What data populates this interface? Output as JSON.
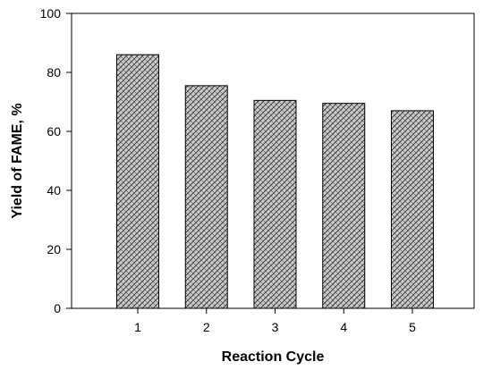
{
  "chart_data": {
    "type": "bar",
    "title": "",
    "xlabel": "Reaction Cycle",
    "ylabel": "Yield of FAME, %",
    "categories": [
      "1",
      "2",
      "3",
      "4",
      "5"
    ],
    "values": [
      86,
      75.5,
      70.5,
      69.5,
      67
    ],
    "ylim": [
      0,
      100
    ],
    "yticks": [
      0,
      20,
      40,
      60,
      80,
      100
    ],
    "grid": false,
    "legend": "none",
    "bar_fill": "#c8c8c8",
    "bar_pattern": "crosshatch",
    "bar_stroke": "#000000"
  }
}
